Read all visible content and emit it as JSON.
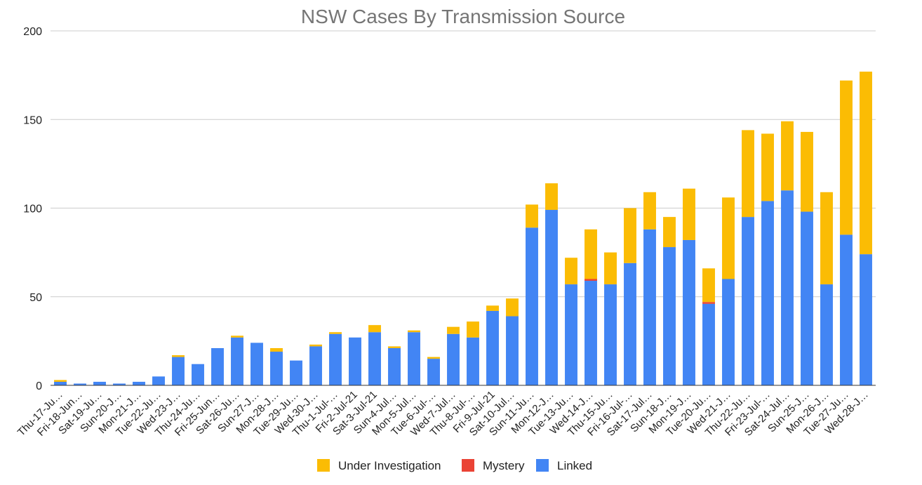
{
  "chart_data": {
    "type": "bar",
    "stacked": true,
    "title": "NSW Cases By Transmission Source",
    "xlabel": "",
    "ylabel": "",
    "ylim": [
      0,
      200
    ],
    "yticks": [
      0,
      50,
      100,
      150,
      200
    ],
    "grid": true,
    "legend_position": "bottom",
    "categories": [
      "Thu-17-Ju…",
      "Fri-18-Jun…",
      "Sat-19-Ju…",
      "Sun-20-J…",
      "Mon-21-J…",
      "Tue-22-Ju…",
      "Wed-23-J…",
      "Thu-24-Ju…",
      "Fri-25-Jun…",
      "Sat-26-Ju…",
      "Sun-27-J…",
      "Mon-28-J…",
      "Tue-29-Ju…",
      "Wed-30-J…",
      "Thu-1-Jul-…",
      "Fri-2-Jul-21",
      "Sat-3-Jul-21",
      "Sun-4-Jul…",
      "Mon-5-Jul…",
      "Tue-6-Jul-…",
      "Wed-7-Jul…",
      "Thu-8-Jul-…",
      "Fri-9-Jul-21",
      "Sat-10-Jul…",
      "Sun-11-Ju…",
      "Mon-12-J…",
      "Tue-13-Ju…",
      "Wed-14-J…",
      "Thu-15-Ju…",
      "Fri-16-Jul-…",
      "Sat-17-Jul…",
      "Sun-18-J…",
      "Mon-19-J…",
      "Tue-20-Ju…",
      "Wed-21-J…",
      "Thu-22-Ju…",
      "Fri-23-Jul-…",
      "Sat-24-Jul…",
      "Sun-25-J…",
      "Mon-26-J…",
      "Tue-27-Ju…",
      "Wed-28-J…"
    ],
    "series": [
      {
        "name": "Linked",
        "color": "#4285f4",
        "values": [
          2,
          1,
          2,
          1,
          2,
          5,
          16,
          12,
          21,
          27,
          24,
          19,
          14,
          22,
          29,
          27,
          30,
          21,
          30,
          15,
          29,
          27,
          42,
          39,
          89,
          99,
          57,
          59,
          57,
          69,
          88,
          78,
          82,
          46,
          60,
          95,
          104,
          110,
          98,
          57,
          85,
          74
        ]
      },
      {
        "name": "Mystery",
        "color": "#ea4335",
        "values": [
          0,
          0,
          0,
          0,
          0,
          0,
          0,
          0,
          0,
          0,
          0,
          0,
          0,
          0,
          0,
          0,
          0,
          0,
          0,
          0,
          0,
          0,
          0,
          0,
          0,
          0,
          0,
          1,
          0,
          0,
          0,
          0,
          0,
          1,
          0,
          0,
          0,
          0,
          0,
          0,
          0,
          0
        ]
      },
      {
        "name": "Under Investigation",
        "color": "#fbbc04",
        "values": [
          1,
          0,
          0,
          0,
          0,
          0,
          1,
          0,
          0,
          1,
          0,
          2,
          0,
          1,
          1,
          0,
          4,
          1,
          1,
          1,
          4,
          9,
          3,
          10,
          13,
          15,
          15,
          28,
          18,
          31,
          21,
          17,
          29,
          19,
          46,
          49,
          38,
          39,
          45,
          52,
          87,
          103
        ]
      }
    ],
    "legend": [
      {
        "name": "Under Investigation",
        "color": "#fbbc04"
      },
      {
        "name": "Mystery",
        "color": "#ea4335"
      },
      {
        "name": "Linked",
        "color": "#4285f4"
      }
    ]
  }
}
